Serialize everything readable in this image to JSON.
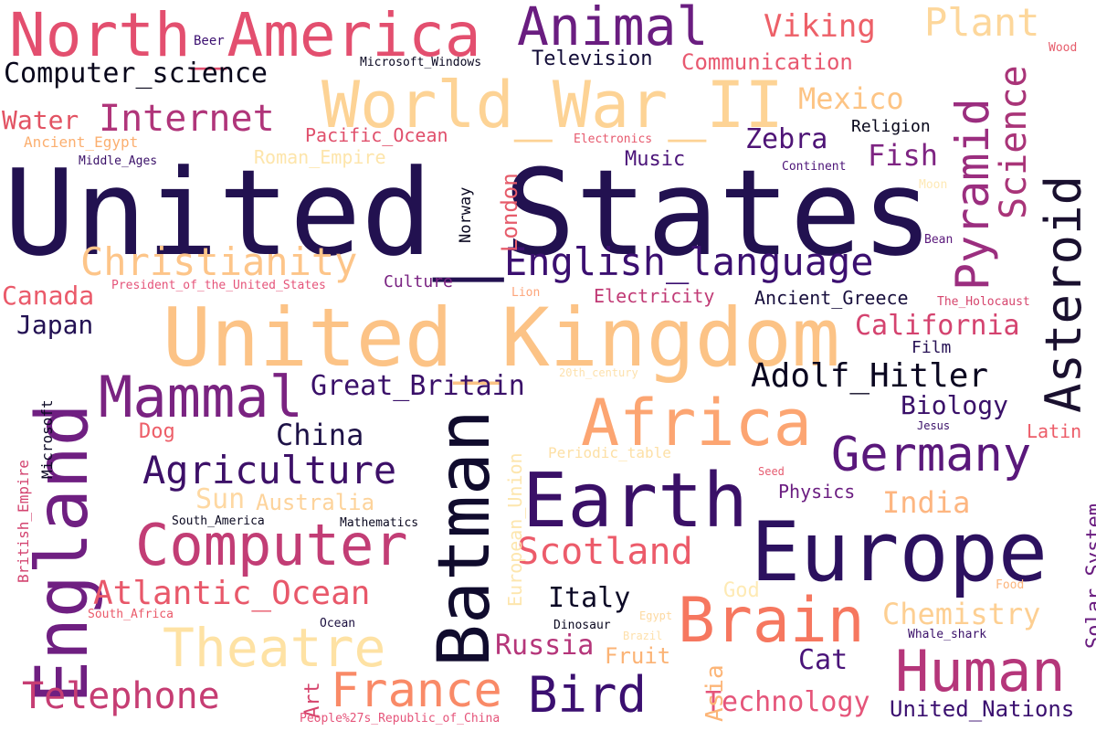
{
  "words": [
    {
      "text": "United_States",
      "color": "#221150"
    },
    {
      "text": "United_Kingdom",
      "color": "#fcc386"
    },
    {
      "text": "Europe",
      "color": "#2c115f"
    },
    {
      "text": "Earth",
      "color": "#3a1067"
    },
    {
      "text": "Batman",
      "color": "#100b2d"
    },
    {
      "text": "England",
      "color": "#6f1f81"
    },
    {
      "text": "North_America",
      "color": "#e34f6f"
    },
    {
      "text": "World_War_II",
      "color": "#fdd395"
    },
    {
      "text": "Africa",
      "color": "#fca572"
    },
    {
      "text": "Brain",
      "color": "#f6775f"
    },
    {
      "text": "Human",
      "color": "#b5367a"
    },
    {
      "text": "Computer",
      "color": "#c23d75"
    },
    {
      "text": "Mammal",
      "color": "#7a2381"
    },
    {
      "text": "Animal",
      "color": "#6a1d80"
    },
    {
      "text": "Theatre",
      "color": "#fee2a4"
    },
    {
      "text": "Asteroid",
      "color": "#1a102f"
    },
    {
      "text": "Germany",
      "color": "#5a187b"
    },
    {
      "text": "Pyramid",
      "color": "#9b2e7f"
    },
    {
      "text": "France",
      "color": "#f98a67"
    },
    {
      "text": "Bird",
      "color": "#3b0f70"
    },
    {
      "text": "Internet",
      "color": "#b0357a"
    },
    {
      "text": "Christianity",
      "color": "#fdc589"
    },
    {
      "text": "English_language",
      "color": "#3b0f70"
    },
    {
      "text": "Agriculture",
      "color": "#3d1068"
    },
    {
      "text": "Adolf_Hitler",
      "color": "#0a0620"
    },
    {
      "text": "Telephone",
      "color": "#c63d73"
    },
    {
      "text": "Scotland",
      "color": "#ec5b6a"
    },
    {
      "text": "Atlantic_Ocean",
      "color": "#e8586a"
    },
    {
      "text": "Plant",
      "color": "#fdd79b"
    },
    {
      "text": "Science",
      "color": "#a93478"
    },
    {
      "text": "Computer_science",
      "color": "#08061b"
    },
    {
      "text": "Viking",
      "color": "#ed6068"
    },
    {
      "text": "Technology",
      "color": "#e5557a"
    },
    {
      "text": "Great_Britain",
      "color": "#3a1069"
    },
    {
      "text": "Chemistry",
      "color": "#fdcf92"
    },
    {
      "text": "Mexico",
      "color": "#fdc484"
    },
    {
      "text": "California",
      "color": "#d4436f"
    },
    {
      "text": "India",
      "color": "#fdb681"
    },
    {
      "text": "Biology",
      "color": "#3a1069"
    },
    {
      "text": "Zebra",
      "color": "#4e1476"
    },
    {
      "text": "Fish",
      "color": "#7e2482"
    },
    {
      "text": "Canada",
      "color": "#ea5a6a"
    },
    {
      "text": "Japan",
      "color": "#231153"
    },
    {
      "text": "China",
      "color": "#1e1247"
    },
    {
      "text": "Water",
      "color": "#e25363"
    },
    {
      "text": "Communication",
      "color": "#e85970"
    },
    {
      "text": "Television",
      "color": "#120c37"
    },
    {
      "text": "Russia",
      "color": "#b5367a"
    },
    {
      "text": "Italy",
      "color": "#0c0926"
    },
    {
      "text": "Cat",
      "color": "#4a1479"
    },
    {
      "text": "Fruit",
      "color": "#fbb375"
    },
    {
      "text": "Sun",
      "color": "#fed8a2"
    },
    {
      "text": "Australia",
      "color": "#fdd39b"
    },
    {
      "text": "United_Nations",
      "color": "#3b1070"
    },
    {
      "text": "Solar_System",
      "color": "#6a1d80"
    },
    {
      "text": "Ancient_Greece",
      "color": "#180f3d"
    },
    {
      "text": "Electricity",
      "color": "#c13b76"
    },
    {
      "text": "Asia",
      "color": "#fcb577"
    },
    {
      "text": "Art",
      "color": "#d6456d"
    },
    {
      "text": "London",
      "color": "#e65c6b"
    },
    {
      "text": "European_Union",
      "color": "#fde6ae"
    },
    {
      "text": "Pacific_Ocean",
      "color": "#e0506c"
    },
    {
      "text": "Roman_Empire",
      "color": "#fde5ab"
    },
    {
      "text": "Ancient_Egypt",
      "color": "#fbaf70"
    },
    {
      "text": "Music",
      "color": "#4b1479"
    },
    {
      "text": "Physics",
      "color": "#6b1d81"
    },
    {
      "text": "Culture",
      "color": "#7a2382"
    },
    {
      "text": "Film",
      "color": "#271255"
    },
    {
      "text": "Dog",
      "color": "#ed5e68"
    },
    {
      "text": "God",
      "color": "#feeab4"
    },
    {
      "text": "Latin",
      "color": "#ec5d69"
    },
    {
      "text": "Religion",
      "color": "#06051a"
    },
    {
      "text": "Norway",
      "color": "#0a0820"
    },
    {
      "text": "Microsoft",
      "color": "#0c0a25"
    },
    {
      "text": "British_Empire",
      "color": "#d34470"
    },
    {
      "text": "Periodic_table",
      "color": "#fde0a6"
    },
    {
      "text": "Microsoft_Windows",
      "color": "#0a0822"
    },
    {
      "text": "Beer",
      "color": "#3b0f70"
    },
    {
      "text": "Electronics",
      "color": "#e65a6e"
    },
    {
      "text": "Middle_Ages",
      "color": "#3a1068"
    },
    {
      "text": "Continent",
      "color": "#4c1478"
    },
    {
      "text": "Moon",
      "color": "#fee9b5"
    },
    {
      "text": "Bean",
      "color": "#5a187b"
    },
    {
      "text": "President_of_the_United_States",
      "color": "#e5547a"
    },
    {
      "text": "Lion",
      "color": "#fda57a"
    },
    {
      "text": "The_Holocaust",
      "color": "#d6456d"
    },
    {
      "text": "20th_century",
      "color": "#fde1ad"
    },
    {
      "text": "Jesus",
      "color": "#3a1069"
    },
    {
      "text": "Seed",
      "color": "#e65c70"
    },
    {
      "text": "South_America",
      "color": "#0a0820"
    },
    {
      "text": "Mathematics",
      "color": "#0a0820"
    },
    {
      "text": "Food",
      "color": "#fcb57c"
    },
    {
      "text": "Egypt",
      "color": "#fdd9a0"
    },
    {
      "text": "South_Africa",
      "color": "#ea5a6a"
    },
    {
      "text": "Ocean",
      "color": "#1b0f3f"
    },
    {
      "text": "Dinosaur",
      "color": "#0a0820"
    },
    {
      "text": "Brazil",
      "color": "#fee0ab"
    },
    {
      "text": "Whale_shark",
      "color": "#3a1069"
    },
    {
      "text": "Wood",
      "color": "#e65c6b"
    },
    {
      "text": "People%27s_Republic_of_China",
      "color": "#e5547a"
    }
  ]
}
